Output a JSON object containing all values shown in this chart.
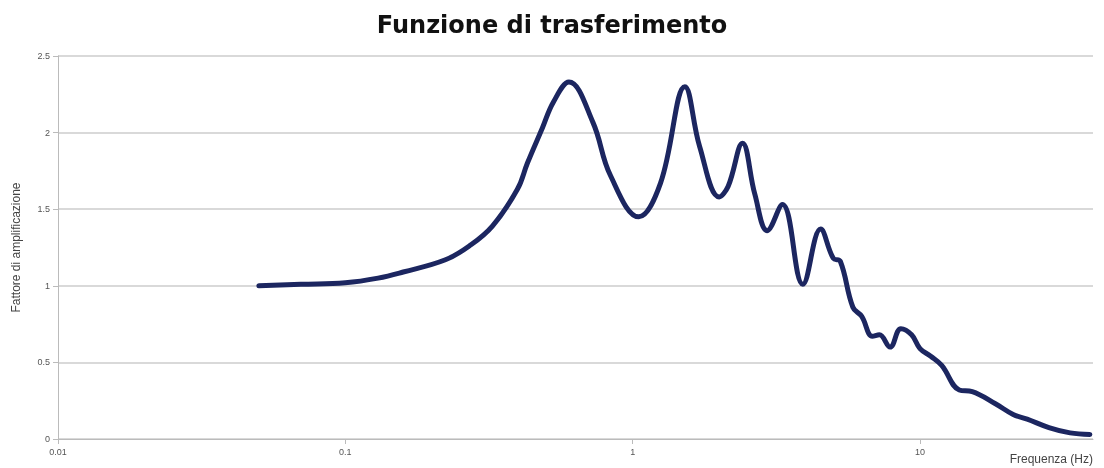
{
  "chart_data": {
    "type": "line",
    "title": "Funzione di trasferimento",
    "xlabel": "Frequenza (Hz)",
    "ylabel": "Fattore di amplificazione",
    "x": [
      0.05,
      0.07,
      0.1,
      0.13,
      0.159,
      0.223,
      0.27,
      0.325,
      0.397,
      0.43,
      0.485,
      0.53,
      0.6,
      0.726,
      0.837,
      1.05,
      1.25,
      1.52,
      1.71,
      2.0,
      2.15,
      2.41,
      2.66,
      2.94,
      3.32,
      3.91,
      4.51,
      4.99,
      5.28,
      5.84,
      6.27,
      6.83,
      7.22,
      7.87,
      8.58,
      9.35,
      10.0,
      10.9,
      11.9,
      13.7,
      15.2,
      18.3,
      21.1,
      23.6,
      28.1,
      33.3,
      39
    ],
    "series": [
      {
        "color": "#1c2660",
        "values": [
          1.0,
          1.01,
          1.02,
          1.05,
          1.09,
          1.17,
          1.26,
          1.39,
          1.63,
          1.8,
          2.03,
          2.2,
          2.33,
          2.07,
          1.72,
          1.45,
          1.67,
          2.3,
          1.91,
          1.58,
          1.65,
          1.93,
          1.6,
          1.36,
          1.53,
          1.01,
          1.37,
          1.18,
          1.16,
          0.86,
          0.8,
          0.67,
          0.68,
          0.6,
          0.72,
          0.68,
          0.59,
          0.54,
          0.48,
          0.32,
          0.31,
          0.23,
          0.16,
          0.13,
          0.075,
          0.04,
          0.03
        ]
      }
    ],
    "xlim": [
      0.01,
      40
    ],
    "xticks": [
      0.01,
      0.1,
      1,
      10
    ],
    "ylim": [
      0,
      2.5
    ],
    "yticks": [
      0,
      0.5,
      1,
      1.5,
      2,
      2.5
    ],
    "log": "x",
    "grid": "y",
    "marker": "none",
    "line_style": "solid"
  }
}
